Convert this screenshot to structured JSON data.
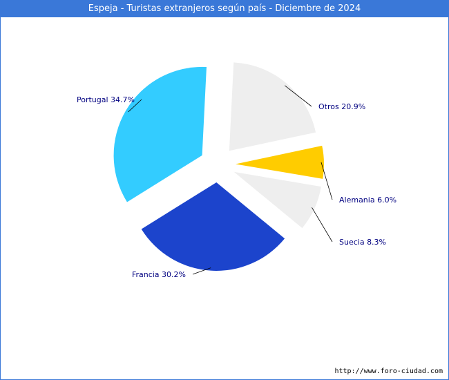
{
  "chart_data": {
    "type": "pie",
    "title": "Espeja - Turistas extranjeros según país - Diciembre de 2024",
    "slices": [
      {
        "name": "Otros",
        "value": 20.9,
        "label": "Otros 20.9%",
        "color": "#eeeeee"
      },
      {
        "name": "Alemania",
        "value": 6.0,
        "label": "Alemania 6.0%",
        "color": "#ffcc00"
      },
      {
        "name": "Suecia",
        "value": 8.3,
        "label": "Suecia 8.3%",
        "color": "#eeeeee"
      },
      {
        "name": "Francia",
        "value": 30.2,
        "label": "Francia 30.2%",
        "color": "#1c44cc"
      },
      {
        "name": "Portugal",
        "value": 34.7,
        "label": "Portugal 34.7%",
        "color": "#33ccff"
      }
    ]
  },
  "footer": {
    "url": "http://www.foro-ciudad.com"
  }
}
